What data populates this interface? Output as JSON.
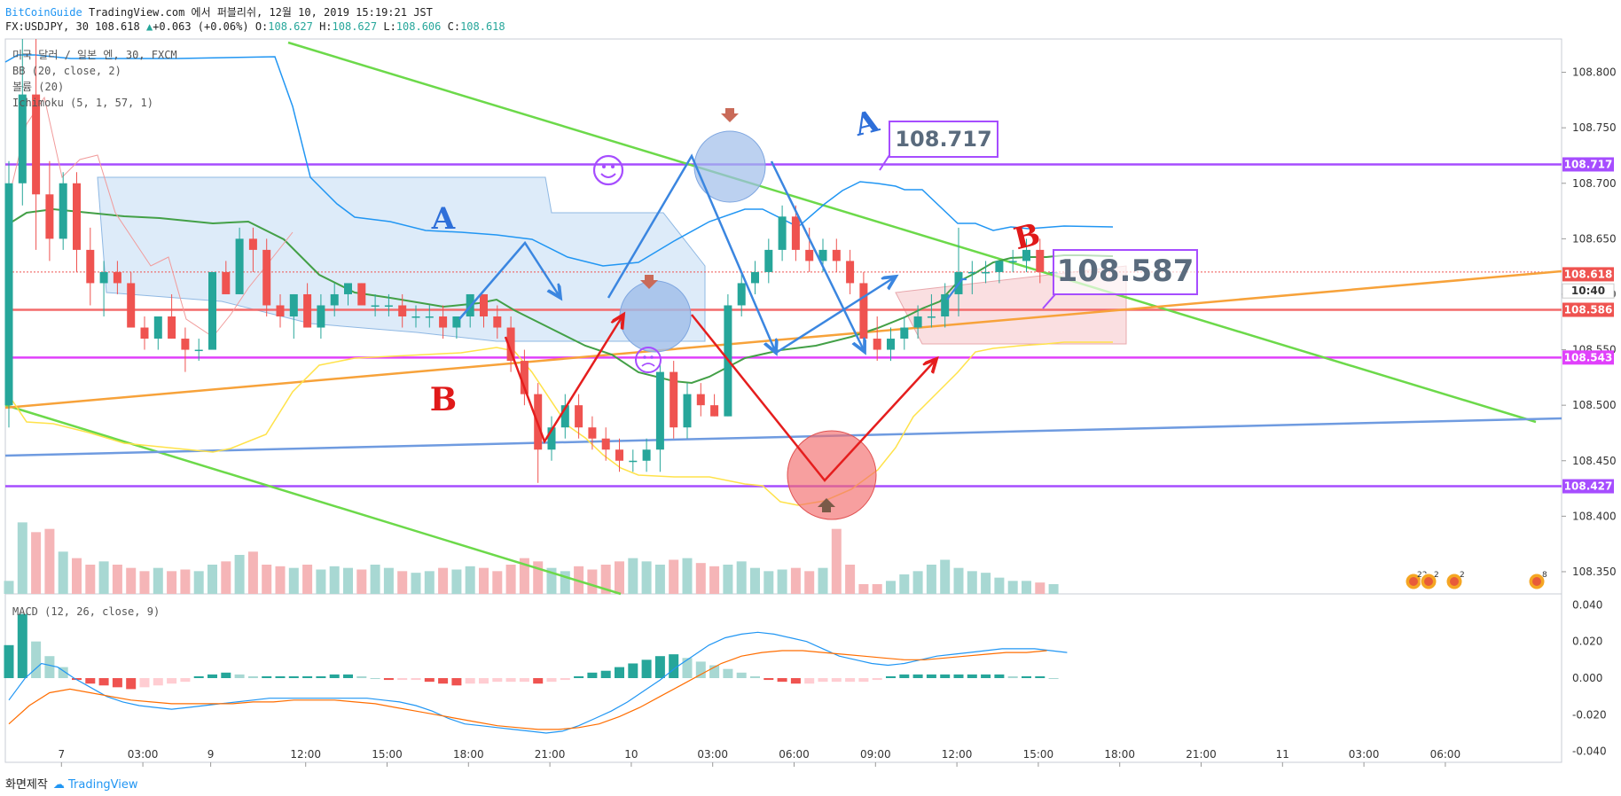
{
  "header": {
    "brand": "BitCoinGuide",
    "published": "TradingView.com 에서 퍼블리쉬, 12월 10, 2019 15:19:21 JST",
    "symbol": "FX:USDJPY, 30",
    "last": "108.618",
    "change": "+0.063 (+0.06%)",
    "o_label": "O:",
    "o": "108.627",
    "h_label": "H:",
    "h": "108.627",
    "l_label": "L:",
    "l": "108.606",
    "c_label": "C:",
    "c": "108.618"
  },
  "legend": {
    "line1": "미국 달러 / 일본 엔, 30, FXCM",
    "line2": "BB (20, close, 2)",
    "line3": "볼륨 (20)",
    "line4": "Ichimoku (5, 1, 57, 1)",
    "macd": "MACD (12, 26, close, 9)"
  },
  "footer": {
    "made": "화면제작",
    "tv": "TradingView"
  },
  "colors": {
    "up": "#26a69a",
    "down": "#ef5350",
    "bb": "#2196f3",
    "ma": "#43a047",
    "yellow": "#ffe24a",
    "purple": "#a64dff",
    "orange": "#f7a23a",
    "green_line": "#6cd94a",
    "blue_line": "#6f9be0",
    "red_line": "#f36b6b"
  },
  "chart_data": {
    "type": "candlestick",
    "symbol": "FX:USDJPY",
    "interval": "30",
    "price_axis": {
      "ylim": [
        108.33,
        108.83
      ],
      "ticks": [
        108.35,
        108.4,
        108.45,
        108.5,
        108.55,
        108.6,
        108.65,
        108.7,
        108.75,
        108.8
      ]
    },
    "time_axis": {
      "labels": [
        "7",
        "03:00",
        "9",
        "12:00",
        "15:00",
        "18:00",
        "21:00",
        "10",
        "03:00",
        "06:00",
        "09:00",
        "12:00",
        "15:00",
        "18:00",
        "21:00",
        "11",
        "03:00",
        "06:00"
      ],
      "bar_index": [
        1,
        7,
        12,
        19,
        25,
        31,
        37,
        43,
        49,
        55,
        61,
        67,
        73,
        79,
        85,
        91,
        97,
        103
      ]
    },
    "price_labels": [
      {
        "text": "108.717",
        "value": 108.717,
        "color": "#a64dff"
      },
      {
        "text": "108.618",
        "value": 108.618,
        "color": "#ef5350"
      },
      {
        "text": "10:40",
        "value": 108.603,
        "color": "#ffffff"
      },
      {
        "text": "108.586",
        "value": 108.586,
        "color": "#ef5350"
      },
      {
        "text": "108.543",
        "value": 108.543,
        "color": "#e040fb"
      },
      {
        "text": "108.427",
        "value": 108.427,
        "color": "#a64dff"
      }
    ],
    "horizontal_lines": [
      {
        "value": 108.717,
        "color": "#a64dff"
      },
      {
        "value": 108.586,
        "color": "#f36b6b"
      },
      {
        "value": 108.543,
        "color": "#e040fb"
      },
      {
        "value": 108.427,
        "color": "#a64dff"
      }
    ],
    "ohlc": [
      [
        108.5,
        108.72,
        108.48,
        108.7
      ],
      [
        108.7,
        108.83,
        108.68,
        108.78
      ],
      [
        108.78,
        108.83,
        108.64,
        108.69
      ],
      [
        108.69,
        108.72,
        108.63,
        108.65
      ],
      [
        108.65,
        108.71,
        108.64,
        108.7
      ],
      [
        108.7,
        108.71,
        108.62,
        108.64
      ],
      [
        108.64,
        108.66,
        108.59,
        108.61
      ],
      [
        108.61,
        108.63,
        108.58,
        108.62
      ],
      [
        108.62,
        108.63,
        108.6,
        108.61
      ],
      [
        108.61,
        108.62,
        108.57,
        108.57
      ],
      [
        108.57,
        108.58,
        108.55,
        108.56
      ],
      [
        108.56,
        108.58,
        108.55,
        108.58
      ],
      [
        108.58,
        108.6,
        108.56,
        108.56
      ],
      [
        108.56,
        108.57,
        108.53,
        108.55
      ],
      [
        108.55,
        108.56,
        108.54,
        108.55
      ],
      [
        108.55,
        108.62,
        108.55,
        108.62
      ],
      [
        108.62,
        108.63,
        108.6,
        108.6
      ],
      [
        108.6,
        108.66,
        108.6,
        108.65
      ],
      [
        108.65,
        108.66,
        108.62,
        108.64
      ],
      [
        108.64,
        108.65,
        108.58,
        108.59
      ],
      [
        108.59,
        108.6,
        108.57,
        108.58
      ],
      [
        108.58,
        108.6,
        108.56,
        108.6
      ],
      [
        108.6,
        108.61,
        108.57,
        108.57
      ],
      [
        108.57,
        108.6,
        108.56,
        108.59
      ],
      [
        108.59,
        108.61,
        108.58,
        108.6
      ],
      [
        108.6,
        108.61,
        108.59,
        108.61
      ],
      [
        108.61,
        108.61,
        108.59,
        108.59
      ],
      [
        108.59,
        108.6,
        108.58,
        108.59
      ],
      [
        108.59,
        108.6,
        108.58,
        108.59
      ],
      [
        108.59,
        108.6,
        108.57,
        108.58
      ],
      [
        108.58,
        108.59,
        108.57,
        108.58
      ],
      [
        108.58,
        108.59,
        108.57,
        108.58
      ],
      [
        108.58,
        108.59,
        108.56,
        108.57
      ],
      [
        108.57,
        108.58,
        108.56,
        108.58
      ],
      [
        108.58,
        108.6,
        108.57,
        108.6
      ],
      [
        108.6,
        108.6,
        108.57,
        108.58
      ],
      [
        108.58,
        108.59,
        108.56,
        108.57
      ],
      [
        108.57,
        108.58,
        108.53,
        108.54
      ],
      [
        108.54,
        108.55,
        108.5,
        108.51
      ],
      [
        108.51,
        108.52,
        108.43,
        108.46
      ],
      [
        108.46,
        108.49,
        108.45,
        108.48
      ],
      [
        108.48,
        108.51,
        108.47,
        108.5
      ],
      [
        108.5,
        108.51,
        108.47,
        108.48
      ],
      [
        108.48,
        108.49,
        108.46,
        108.47
      ],
      [
        108.47,
        108.48,
        108.45,
        108.46
      ],
      [
        108.46,
        108.47,
        108.44,
        108.45
      ],
      [
        108.45,
        108.46,
        108.44,
        108.45
      ],
      [
        108.45,
        108.47,
        108.44,
        108.46
      ],
      [
        108.46,
        108.54,
        108.44,
        108.53
      ],
      [
        108.53,
        108.54,
        108.47,
        108.48
      ],
      [
        108.48,
        108.52,
        108.47,
        108.51
      ],
      [
        108.51,
        108.52,
        108.49,
        108.5
      ],
      [
        108.5,
        108.51,
        108.49,
        108.49
      ],
      [
        108.49,
        108.6,
        108.49,
        108.59
      ],
      [
        108.59,
        108.62,
        108.58,
        108.61
      ],
      [
        108.61,
        108.63,
        108.6,
        108.62
      ],
      [
        108.62,
        108.65,
        108.61,
        108.64
      ],
      [
        108.64,
        108.68,
        108.63,
        108.67
      ],
      [
        108.67,
        108.68,
        108.63,
        108.64
      ],
      [
        108.64,
        108.66,
        108.62,
        108.63
      ],
      [
        108.63,
        108.65,
        108.62,
        108.64
      ],
      [
        108.64,
        108.65,
        108.62,
        108.63
      ],
      [
        108.63,
        108.64,
        108.6,
        108.61
      ],
      [
        108.61,
        108.62,
        108.55,
        108.56
      ],
      [
        108.56,
        108.58,
        108.54,
        108.55
      ],
      [
        108.55,
        108.57,
        108.54,
        108.56
      ],
      [
        108.56,
        108.58,
        108.55,
        108.57
      ],
      [
        108.57,
        108.59,
        108.56,
        108.58
      ],
      [
        108.58,
        108.6,
        108.57,
        108.58
      ],
      [
        108.58,
        108.61,
        108.57,
        108.6
      ],
      [
        108.6,
        108.66,
        108.58,
        108.62
      ],
      [
        108.62,
        108.63,
        108.6,
        108.62
      ],
      [
        108.62,
        108.63,
        108.61,
        108.62
      ],
      [
        108.62,
        108.63,
        108.61,
        108.63
      ],
      [
        108.63,
        108.64,
        108.62,
        108.63
      ],
      [
        108.63,
        108.65,
        108.62,
        108.64
      ],
      [
        108.64,
        108.65,
        108.61,
        108.62
      ],
      [
        108.62,
        108.63,
        108.61,
        108.62
      ]
    ],
    "volume_ylim": [
      0,
      60
    ],
    "volume": [
      8,
      44,
      38,
      40,
      26,
      22,
      18,
      20,
      18,
      16,
      14,
      16,
      14,
      15,
      14,
      18,
      20,
      24,
      26,
      18,
      17,
      16,
      18,
      15,
      17,
      16,
      15,
      18,
      16,
      14,
      13,
      14,
      16,
      15,
      17,
      16,
      14,
      18,
      22,
      20,
      16,
      14,
      17,
      15,
      18,
      20,
      22,
      20,
      18,
      21,
      22,
      19,
      17,
      18,
      20,
      16,
      14,
      15,
      16,
      14,
      16,
      40,
      18,
      6,
      6,
      8,
      12,
      14,
      18,
      21,
      16,
      14,
      13,
      10,
      8,
      8,
      7,
      6
    ],
    "macd_ylim": [
      -0.045,
      0.045
    ],
    "macd_ticks": [
      0.04,
      0.02,
      0.0,
      -0.02,
      -0.04
    ],
    "macd_hist": [
      0.018,
      0.035,
      0.02,
      0.012,
      0.006,
      -0.001,
      -0.003,
      -0.004,
      -0.005,
      -0.006,
      -0.005,
      -0.004,
      -0.003,
      -0.002,
      0.001,
      0.002,
      0.003,
      0.002,
      0.001,
      0.001,
      0.001,
      0.001,
      0.001,
      0.001,
      0.002,
      0.002,
      0.001,
      0.0,
      -0.001,
      -0.001,
      -0.001,
      -0.002,
      -0.003,
      -0.004,
      -0.003,
      -0.003,
      -0.002,
      -0.002,
      -0.002,
      -0.003,
      -0.002,
      -0.001,
      0.001,
      0.003,
      0.004,
      0.006,
      0.008,
      0.01,
      0.012,
      0.013,
      0.011,
      0.009,
      0.007,
      0.005,
      0.003,
      0.001,
      -0.001,
      -0.002,
      -0.003,
      -0.003,
      -0.002,
      -0.002,
      -0.002,
      -0.002,
      -0.001,
      0.001,
      0.002,
      0.002,
      0.002,
      0.002,
      0.002,
      0.002,
      0.002,
      0.002,
      0.001,
      0.001,
      0.001,
      0.0
    ],
    "macd_line": [
      -0.012,
      0.0,
      0.008,
      0.006,
      0.0,
      -0.005,
      -0.01,
      -0.013,
      -0.015,
      -0.016,
      -0.017,
      -0.016,
      -0.015,
      -0.014,
      -0.013,
      -0.012,
      -0.011,
      -0.011,
      -0.011,
      -0.011,
      -0.011,
      -0.011,
      -0.011,
      -0.012,
      -0.013,
      -0.015,
      -0.018,
      -0.022,
      -0.025,
      -0.026,
      -0.027,
      -0.028,
      -0.029,
      -0.03,
      -0.029,
      -0.026,
      -0.022,
      -0.018,
      -0.013,
      -0.007,
      -0.001,
      0.006,
      0.012,
      0.018,
      0.022,
      0.024,
      0.025,
      0.024,
      0.022,
      0.02,
      0.016,
      0.012,
      0.01,
      0.008,
      0.007,
      0.008,
      0.01,
      0.012,
      0.013,
      0.014,
      0.015,
      0.016,
      0.016,
      0.016,
      0.015,
      0.014
    ],
    "signal_line": [
      -0.025,
      -0.015,
      -0.008,
      -0.006,
      -0.008,
      -0.01,
      -0.012,
      -0.013,
      -0.014,
      -0.014,
      -0.014,
      -0.014,
      -0.013,
      -0.013,
      -0.012,
      -0.012,
      -0.012,
      -0.013,
      -0.014,
      -0.016,
      -0.018,
      -0.02,
      -0.022,
      -0.024,
      -0.026,
      -0.027,
      -0.028,
      -0.028,
      -0.027,
      -0.025,
      -0.021,
      -0.016,
      -0.01,
      -0.004,
      0.002,
      0.008,
      0.012,
      0.014,
      0.015,
      0.015,
      0.014,
      0.013,
      0.012,
      0.011,
      0.01,
      0.01,
      0.011,
      0.012,
      0.013,
      0.014,
      0.014,
      0.015
    ],
    "annotations": [
      {
        "text": "A",
        "color": "#2e6fd9"
      },
      {
        "text": "B",
        "color": "#e01919"
      },
      {
        "text": "A",
        "color": "#2e6fd9"
      },
      {
        "text": "B",
        "color": "#e01919"
      }
    ],
    "callouts": [
      {
        "text": "108.717",
        "value": 108.717,
        "color": "#a64dff"
      },
      {
        "text": "108.587",
        "value": 108.587,
        "color": "#a64dff"
      }
    ],
    "event_badges": [
      "22",
      "2",
      "2",
      "8"
    ]
  }
}
